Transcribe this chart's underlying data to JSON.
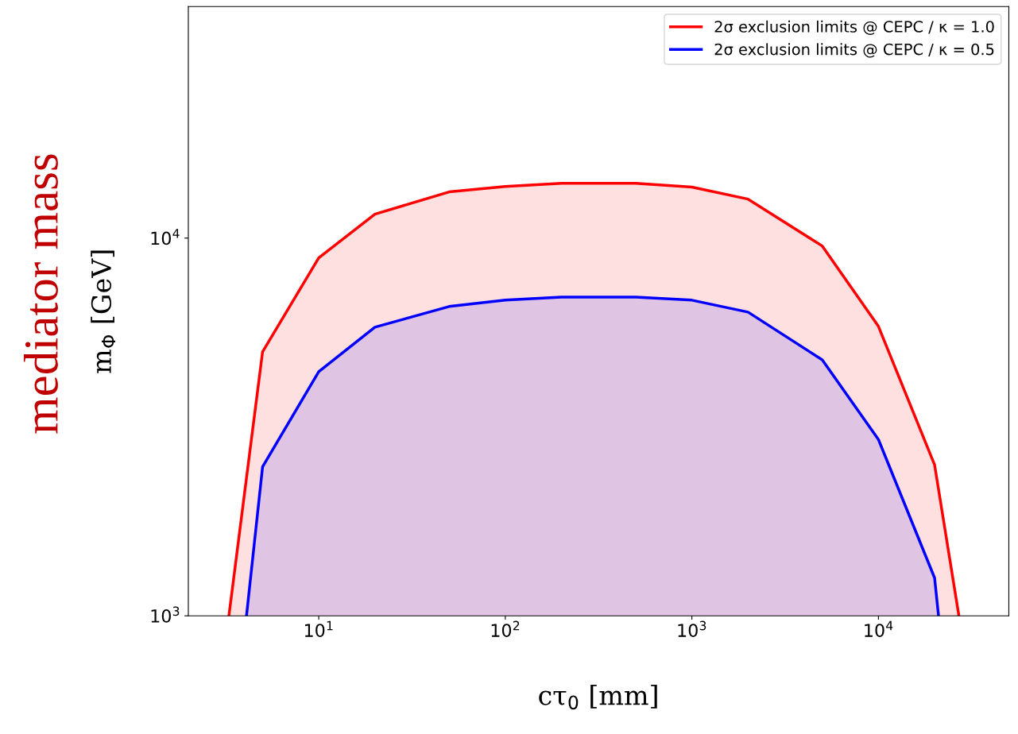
{
  "chart_data": {
    "type": "area",
    "xlabel": "cτ$_{0}$ [mm]",
    "ylabel": "m$_{Φ}$ [GeV]",
    "log": "xy",
    "xlim": [
      2,
      50000
    ],
    "ylim": [
      1000,
      41000
    ],
    "xticks": [
      {
        "value": 10,
        "label": "10$^{1}$"
      },
      {
        "value": 100,
        "label": "10$^{2}$"
      },
      {
        "value": 1000,
        "label": "10$^{3}$"
      },
      {
        "value": 10000,
        "label": "10$^{4}$"
      }
    ],
    "yticks": [
      {
        "value": 1000,
        "label": "10$^{3}$"
      },
      {
        "value": 10000,
        "label": "10$^{4}$"
      }
    ],
    "legend": "top right",
    "annotations": [
      "mediator mass"
    ],
    "series": [
      {
        "name": "2σ exclusion limits @ CEPC / κ = 1.0",
        "color": "#ff0000",
        "x": [
          3.3,
          5,
          10,
          20,
          50,
          100,
          200,
          500,
          1000,
          2000,
          5000,
          10000,
          20000,
          27000
        ],
        "values": [
          1000,
          5000,
          8860,
          11570,
          13250,
          13700,
          13960,
          13960,
          13650,
          12680,
          9530,
          5840,
          2510,
          1000
        ]
      },
      {
        "name": "2σ exclusion limits @ CEPC / κ = 0.5",
        "color": "#0000ff",
        "x": [
          4.1,
          5,
          10,
          20,
          50,
          100,
          200,
          500,
          1000,
          2000,
          5000,
          10000,
          20000,
          21000
        ],
        "values": [
          1000,
          2480,
          4430,
          5810,
          6590,
          6850,
          6980,
          6980,
          6850,
          6370,
          4760,
          2930,
          1260,
          1000
        ]
      }
    ]
  }
}
